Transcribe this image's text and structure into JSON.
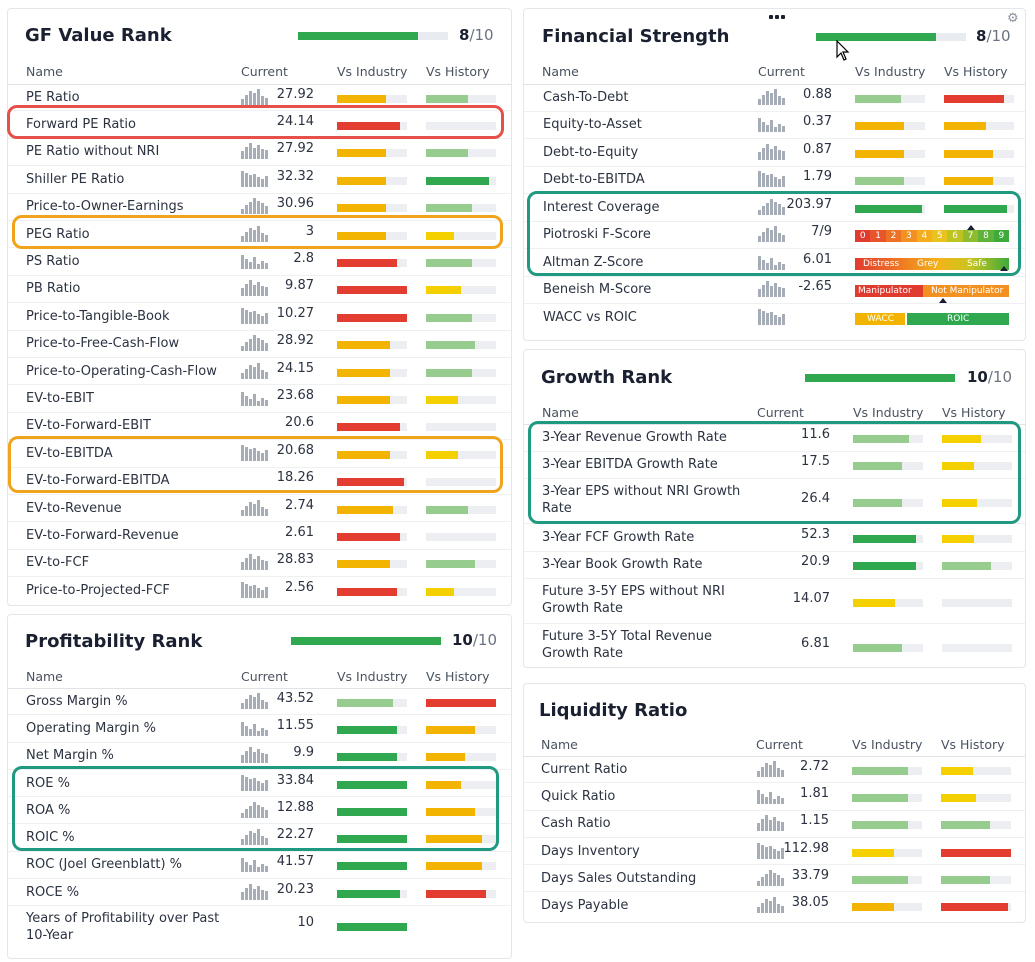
{
  "colors": {
    "dark_green": "#2fa84f",
    "light_green": "#96cd8e",
    "yellow": "#f2b400",
    "gold": "#f5d000",
    "red": "#e23d30",
    "empty": "#eceef1",
    "highlight_red": "#e5514a",
    "highlight_orange": "#f0a41d",
    "highlight_teal": "#1f9a80"
  },
  "gf_value": {
    "title": "GF Value Rank",
    "rank": "8",
    "rank_of": "/10",
    "rank_fraction": 0.8,
    "headers": {
      "name": "Name",
      "current": "Current",
      "industry": "Vs Industry",
      "history": "Vs History"
    },
    "rows": [
      {
        "name": "PE Ratio",
        "current": "27.92",
        "ind": [
          0.7,
          "yellow"
        ],
        "hist": [
          0.6,
          "light_green"
        ],
        "spark": true
      },
      {
        "name": "Forward PE Ratio",
        "current": "24.14",
        "ind": [
          0.9,
          "red"
        ],
        "hist": [
          0,
          "empty"
        ],
        "spark": false
      },
      {
        "name": "PE Ratio without NRI",
        "current": "27.92",
        "ind": [
          0.7,
          "yellow"
        ],
        "hist": [
          0.6,
          "light_green"
        ],
        "spark": true
      },
      {
        "name": "Shiller PE Ratio",
        "current": "32.32",
        "ind": [
          0.7,
          "yellow"
        ],
        "hist": [
          0.9,
          "dark_green"
        ],
        "spark": true
      },
      {
        "name": "Price-to-Owner-Earnings",
        "current": "30.96",
        "ind": [
          0.7,
          "yellow"
        ],
        "hist": [
          0.65,
          "light_green"
        ],
        "spark": true
      },
      {
        "name": "PEG Ratio",
        "current": "3",
        "ind": [
          0.7,
          "yellow"
        ],
        "hist": [
          0.4,
          "gold"
        ],
        "spark": true
      },
      {
        "name": "PS Ratio",
        "current": "2.8",
        "ind": [
          0.85,
          "red"
        ],
        "hist": [
          0.65,
          "light_green"
        ],
        "spark": true
      },
      {
        "name": "PB Ratio",
        "current": "9.87",
        "ind": [
          1.0,
          "red"
        ],
        "hist": [
          0.5,
          "gold"
        ],
        "spark": true
      },
      {
        "name": "Price-to-Tangible-Book",
        "current": "10.27",
        "ind": [
          1.0,
          "red"
        ],
        "hist": [
          0.65,
          "light_green"
        ],
        "spark": true
      },
      {
        "name": "Price-to-Free-Cash-Flow",
        "current": "28.92",
        "ind": [
          0.75,
          "yellow"
        ],
        "hist": [
          0.7,
          "light_green"
        ],
        "spark": true
      },
      {
        "name": "Price-to-Operating-Cash-Flow",
        "current": "24.15",
        "ind": [
          0.75,
          "yellow"
        ],
        "hist": [
          0.65,
          "light_green"
        ],
        "spark": true
      },
      {
        "name": "EV-to-EBIT",
        "current": "23.68",
        "ind": [
          0.75,
          "yellow"
        ],
        "hist": [
          0.45,
          "gold"
        ],
        "spark": true
      },
      {
        "name": "EV-to-Forward-EBIT",
        "current": "20.6",
        "ind": [
          0.9,
          "red"
        ],
        "hist": [
          0,
          "empty"
        ],
        "spark": false
      },
      {
        "name": "EV-to-EBITDA",
        "current": "20.68",
        "ind": [
          0.75,
          "yellow"
        ],
        "hist": [
          0.45,
          "gold"
        ],
        "spark": true
      },
      {
        "name": "EV-to-Forward-EBITDA",
        "current": "18.26",
        "ind": [
          0.95,
          "red"
        ],
        "hist": [
          0,
          "empty"
        ],
        "spark": false
      },
      {
        "name": "EV-to-Revenue",
        "current": "2.74",
        "ind": [
          0.8,
          "yellow"
        ],
        "hist": [
          0.6,
          "light_green"
        ],
        "spark": true
      },
      {
        "name": "EV-to-Forward-Revenue",
        "current": "2.61",
        "ind": [
          0.9,
          "red"
        ],
        "hist": [
          0,
          "empty"
        ],
        "spark": false
      },
      {
        "name": "EV-to-FCF",
        "current": "28.83",
        "ind": [
          0.75,
          "yellow"
        ],
        "hist": [
          0.7,
          "light_green"
        ],
        "spark": true
      },
      {
        "name": "Price-to-Projected-FCF",
        "current": "2.56",
        "ind": [
          0.85,
          "red"
        ],
        "hist": [
          0.4,
          "gold"
        ],
        "spark": true
      }
    ]
  },
  "profitability": {
    "title": "Profitability Rank",
    "rank": "10",
    "rank_of": "/10",
    "rank_fraction": 1.0,
    "headers": {
      "name": "Name",
      "current": "Current",
      "industry": "Vs Industry",
      "history": "Vs History"
    },
    "rows": [
      {
        "name": "Gross Margin %",
        "current": "43.52",
        "ind": [
          0.8,
          "light_green"
        ],
        "hist": [
          1.0,
          "red"
        ],
        "spark": true
      },
      {
        "name": "Operating Margin %",
        "current": "11.55",
        "ind": [
          0.85,
          "dark_green"
        ],
        "hist": [
          0.7,
          "yellow"
        ],
        "spark": true
      },
      {
        "name": "Net Margin %",
        "current": "9.9",
        "ind": [
          0.85,
          "dark_green"
        ],
        "hist": [
          0.55,
          "yellow"
        ],
        "spark": true
      },
      {
        "name": "ROE %",
        "current": "33.84",
        "ind": [
          1.0,
          "dark_green"
        ],
        "hist": [
          0.5,
          "yellow"
        ],
        "spark": true
      },
      {
        "name": "ROA %",
        "current": "12.88",
        "ind": [
          1.0,
          "dark_green"
        ],
        "hist": [
          0.7,
          "yellow"
        ],
        "spark": true
      },
      {
        "name": "ROIC %",
        "current": "22.27",
        "ind": [
          1.0,
          "dark_green"
        ],
        "hist": [
          0.8,
          "yellow"
        ],
        "spark": true
      },
      {
        "name": "ROC (Joel Greenblatt) %",
        "current": "41.57",
        "ind": [
          1.0,
          "dark_green"
        ],
        "hist": [
          0.8,
          "yellow"
        ],
        "spark": true
      },
      {
        "name": "ROCE %",
        "current": "20.23",
        "ind": [
          0.9,
          "dark_green"
        ],
        "hist": [
          0.85,
          "red"
        ],
        "spark": true
      },
      {
        "name": "Years of Profitability over Past 10-Year",
        "current": "10",
        "ind": [
          1.0,
          "dark_green"
        ],
        "hist": [
          0,
          "none"
        ],
        "spark": false
      }
    ]
  },
  "financial": {
    "title": "Financial Strength",
    "rank": "8",
    "rank_of": "/10",
    "rank_fraction": 0.8,
    "headers": {
      "name": "Name",
      "current": "Current",
      "industry": "Vs Industry",
      "history": "Vs History"
    },
    "rows": [
      {
        "name": "Cash-To-Debt",
        "current": "0.88",
        "ind": [
          0.65,
          "light_green"
        ],
        "hist": [
          0.85,
          "red"
        ],
        "spark": true
      },
      {
        "name": "Equity-to-Asset",
        "current": "0.37",
        "ind": [
          0.7,
          "yellow"
        ],
        "hist": [
          0.6,
          "yellow"
        ],
        "spark": true
      },
      {
        "name": "Debt-to-Equity",
        "current": "0.87",
        "ind": [
          0.7,
          "yellow"
        ],
        "hist": [
          0.7,
          "yellow"
        ],
        "spark": true
      },
      {
        "name": "Debt-to-EBITDA",
        "current": "1.79",
        "ind": [
          0.7,
          "light_green"
        ],
        "hist": [
          0.7,
          "yellow"
        ],
        "spark": true
      },
      {
        "name": "Interest Coverage",
        "current": "203.97",
        "ind": [
          0.95,
          "dark_green"
        ],
        "hist": [
          0.9,
          "dark_green"
        ],
        "spark": true
      },
      {
        "name": "Piotroski F-Score",
        "current": "7/9",
        "type": "fscore",
        "spark": true
      },
      {
        "name": "Altman Z-Score",
        "current": "6.01",
        "type": "zscore",
        "spark": true
      },
      {
        "name": "Beneish M-Score",
        "current": "-2.65",
        "type": "mscore",
        "spark": true
      },
      {
        "name": "WACC vs ROIC",
        "current": "",
        "type": "wacc",
        "spark": true
      }
    ],
    "fscore_labels": [
      "0",
      "1",
      "2",
      "3",
      "4",
      "5",
      "6",
      "7",
      "8",
      "9"
    ],
    "fscore_colors": [
      "#e03b2f",
      "#e8552b",
      "#ee7226",
      "#f29121",
      "#f4ad1c",
      "#e9c21b",
      "#bdc320",
      "#8ebc2e",
      "#5fb23a",
      "#3faa3c"
    ],
    "fscore_value": 7,
    "zscore_labels": [
      "Distress",
      "Grey",
      "Safe"
    ],
    "mscore_labels": [
      "Manipulator",
      "Not Manipulator"
    ],
    "wacc_labels": [
      "WACC",
      "ROIC"
    ]
  },
  "growth": {
    "title": "Growth Rank",
    "rank": "10",
    "rank_of": "/10",
    "rank_fraction": 1.0,
    "headers": {
      "name": "Name",
      "current": "Current",
      "industry": "Vs Industry",
      "history": "Vs History"
    },
    "rows": [
      {
        "name": "3-Year Revenue Growth Rate",
        "current": "11.6",
        "ind": [
          0.8,
          "light_green"
        ],
        "hist": [
          0.55,
          "gold"
        ]
      },
      {
        "name": "3-Year EBITDA Growth Rate",
        "current": "17.5",
        "ind": [
          0.7,
          "light_green"
        ],
        "hist": [
          0.45,
          "gold"
        ]
      },
      {
        "name": "3-Year EPS without NRI Growth Rate",
        "current": "26.4",
        "ind": [
          0.7,
          "light_green"
        ],
        "hist": [
          0.5,
          "gold"
        ]
      },
      {
        "name": "3-Year FCF Growth Rate",
        "current": "52.3",
        "ind": [
          0.9,
          "dark_green"
        ],
        "hist": [
          0.45,
          "gold"
        ]
      },
      {
        "name": "3-Year Book Growth Rate",
        "current": "20.9",
        "ind": [
          0.9,
          "dark_green"
        ],
        "hist": [
          0.7,
          "light_green"
        ]
      },
      {
        "name": "Future 3-5Y EPS without NRI Growth Rate",
        "current": "14.07",
        "ind": [
          0.6,
          "gold"
        ],
        "hist": [
          0,
          "empty"
        ]
      },
      {
        "name": "Future 3-5Y Total Revenue Growth Rate",
        "current": "6.81",
        "ind": [
          0.7,
          "light_green"
        ],
        "hist": [
          0,
          "empty"
        ]
      }
    ]
  },
  "liquidity": {
    "title": "Liquidity Ratio",
    "headers": {
      "name": "Name",
      "current": "Current",
      "industry": "Vs Industry",
      "history": "Vs History"
    },
    "rows": [
      {
        "name": "Current Ratio",
        "current": "2.72",
        "ind": [
          0.8,
          "light_green"
        ],
        "hist": [
          0.45,
          "gold"
        ],
        "spark": true
      },
      {
        "name": "Quick Ratio",
        "current": "1.81",
        "ind": [
          0.8,
          "light_green"
        ],
        "hist": [
          0.5,
          "gold"
        ],
        "spark": true
      },
      {
        "name": "Cash Ratio",
        "current": "1.15",
        "ind": [
          0.8,
          "light_green"
        ],
        "hist": [
          0.7,
          "light_green"
        ],
        "spark": true
      },
      {
        "name": "Days Inventory",
        "current": "112.98",
        "ind": [
          0.6,
          "gold"
        ],
        "hist": [
          1.0,
          "red"
        ],
        "spark": true
      },
      {
        "name": "Days Sales Outstanding",
        "current": "33.79",
        "ind": [
          0.8,
          "light_green"
        ],
        "hist": [
          0.7,
          "light_green"
        ],
        "spark": true
      },
      {
        "name": "Days Payable",
        "current": "38.05",
        "ind": [
          0.6,
          "yellow"
        ],
        "hist": [
          0.95,
          "red"
        ],
        "spark": true
      }
    ]
  }
}
